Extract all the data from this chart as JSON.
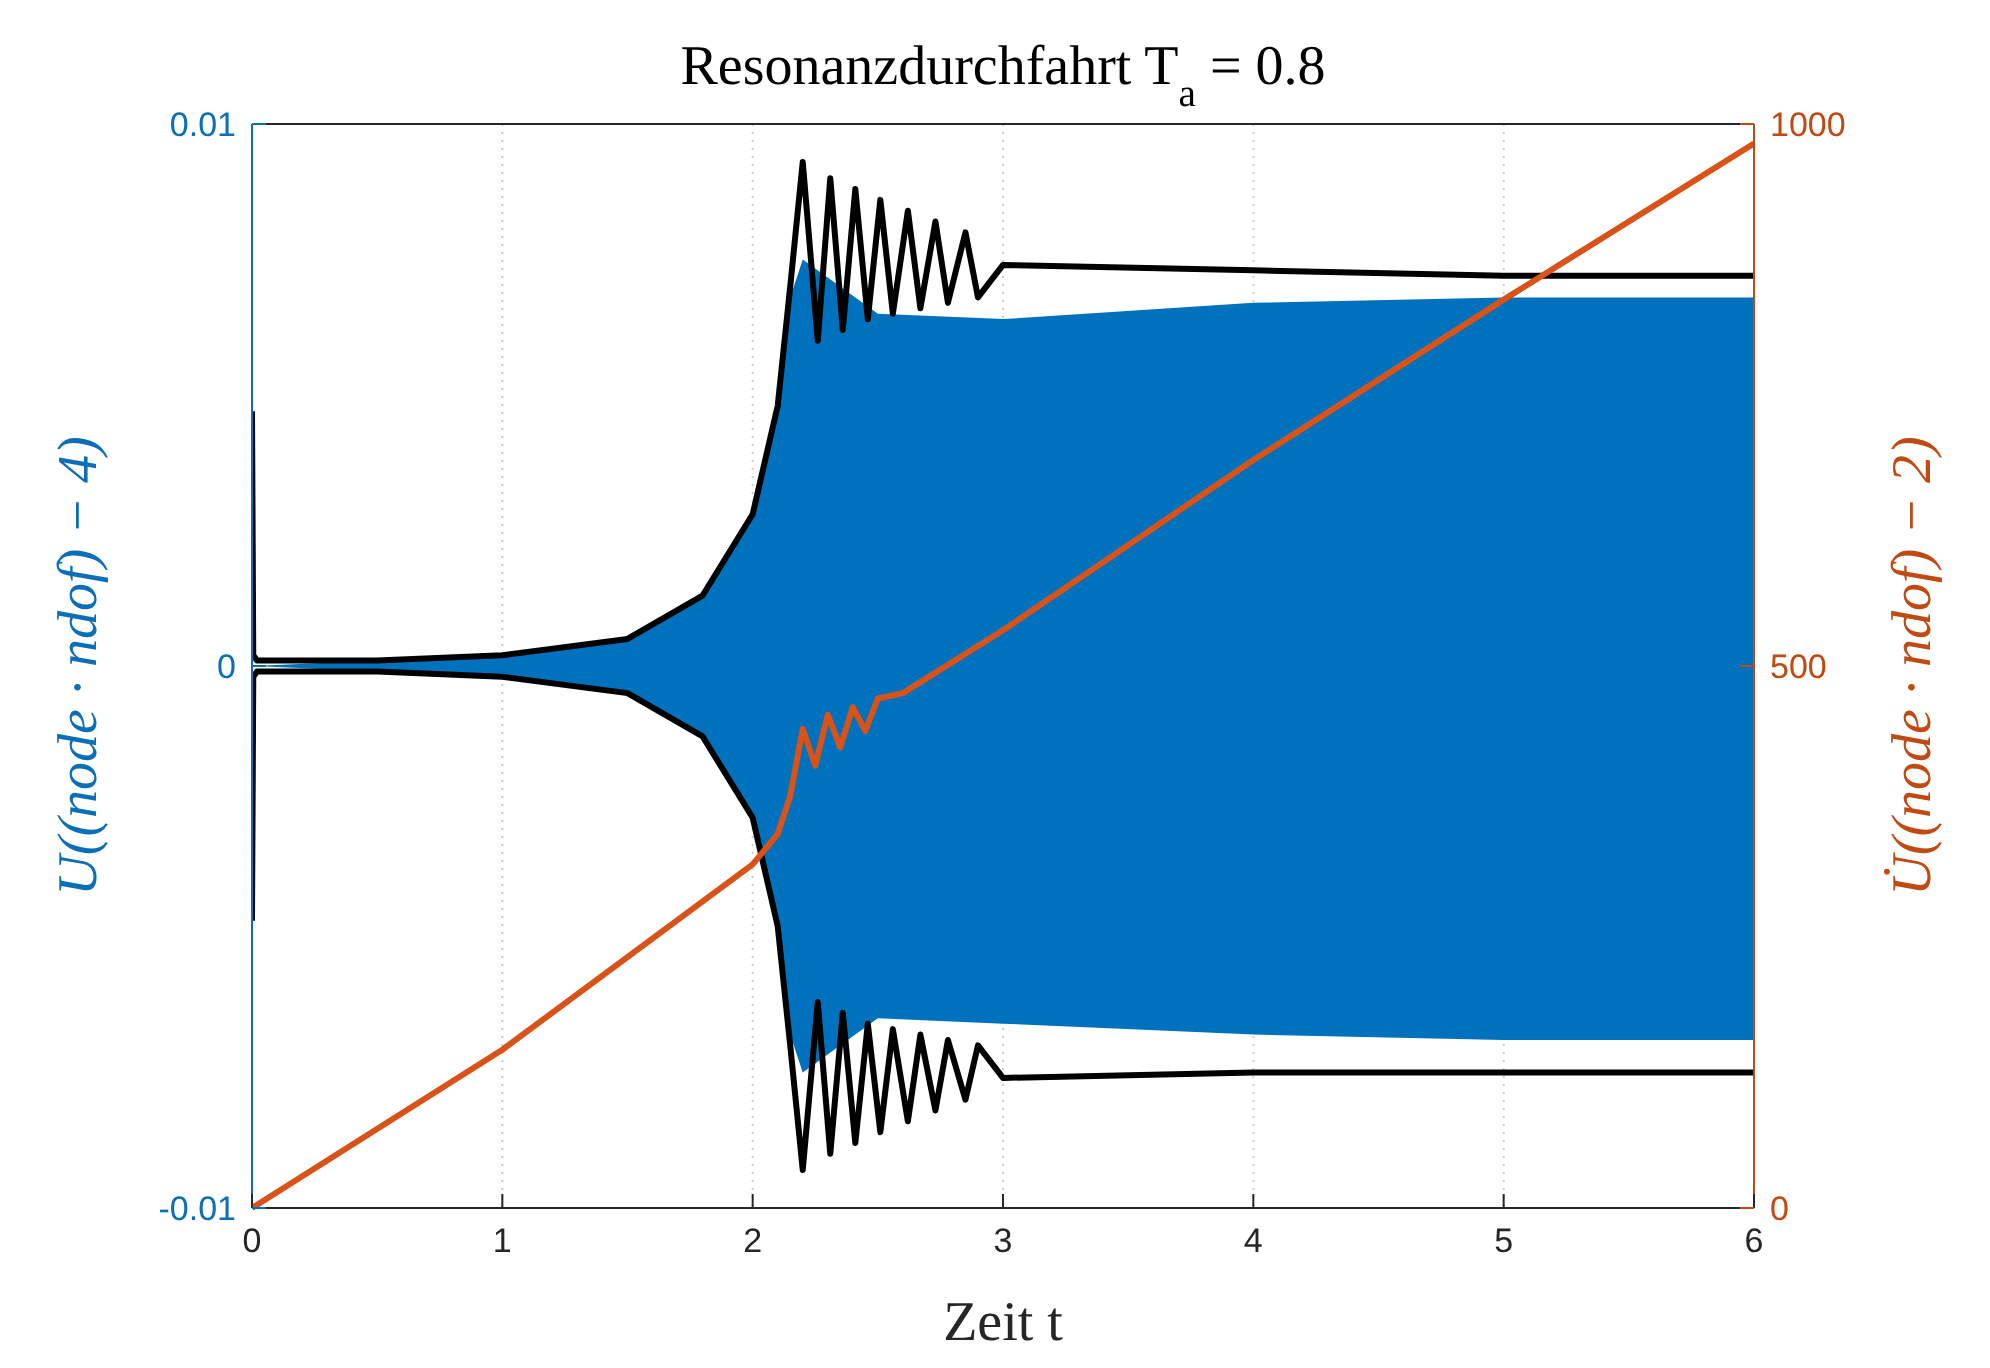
{
  "chart_data": {
    "type": "line",
    "title": "Resonanzdurchfahrt T$_{a}$ = 0.8",
    "xlabel": "Zeit t",
    "ylabel": "U((node · ndof) − 4)",
    "y2label": "U̇((node · ndof) − 2)",
    "xlim": [
      0,
      6
    ],
    "xticks": [
      0,
      1,
      2,
      3,
      4,
      5,
      6
    ],
    "ylim": [
      -0.01,
      0.01
    ],
    "yticks": [
      {
        "value": -0.01,
        "label": "-0.01"
      },
      0,
      0.01
    ],
    "y2lim": [
      0,
      1000
    ],
    "y2ticks": [
      0,
      500,
      1000
    ],
    "grid": true,
    "line_style": "solid",
    "marker": "none",
    "series": [
      {
        "type": "area",
        "color": "#0072bd",
        "x": [
          0,
          0.5,
          1,
          1.5,
          1.8,
          2,
          2.1,
          2.15,
          2.2,
          2.5,
          3,
          4,
          5,
          6
        ],
        "values": [
          0,
          0.0001,
          0.0002,
          0.0005,
          0.0013,
          0.0028,
          0.0048,
          0.0068,
          0.0075,
          0.0065,
          0.0064,
          0.0067,
          0.0068,
          0.0068
        ]
      },
      {
        "type": "area",
        "color": "#0072bd",
        "x": [
          0,
          0.5,
          1,
          1.5,
          1.8,
          2,
          2.1,
          2.15,
          2.2,
          2.5,
          3,
          4,
          5,
          6
        ],
        "values": [
          0,
          -0.0001,
          -0.0002,
          -0.0005,
          -0.0013,
          -0.0028,
          -0.0048,
          -0.0068,
          -0.0075,
          -0.0065,
          -0.0066,
          -0.0068,
          -0.0069,
          -0.0069
        ]
      },
      {
        "color": "#000000",
        "x": [
          0,
          0.005,
          0.02,
          0.5,
          1,
          1.5,
          1.8,
          2,
          2.1,
          2.15,
          2.2,
          2.26,
          2.31,
          2.36,
          2.41,
          2.46,
          2.51,
          2.56,
          2.62,
          2.67,
          2.73,
          2.78,
          2.85,
          2.9,
          3,
          4,
          5,
          6
        ],
        "values": [
          0.0047,
          0.0002,
          0.0001,
          0.0001,
          0.0002,
          0.0005,
          0.0013,
          0.0028,
          0.0048,
          0.007,
          0.0093,
          0.006,
          0.009,
          0.0062,
          0.0088,
          0.0064,
          0.0086,
          0.0065,
          0.0084,
          0.0066,
          0.0082,
          0.0067,
          0.008,
          0.0068,
          0.0074,
          0.0073,
          0.0072,
          0.0072
        ]
      },
      {
        "color": "#000000",
        "x": [
          0,
          0.005,
          0.02,
          0.5,
          1,
          1.5,
          1.8,
          2,
          2.1,
          2.15,
          2.2,
          2.26,
          2.31,
          2.36,
          2.41,
          2.46,
          2.51,
          2.56,
          2.62,
          2.67,
          2.73,
          2.78,
          2.85,
          2.9,
          3,
          4,
          5,
          6
        ],
        "values": [
          -0.0047,
          -0.0002,
          -0.0001,
          -0.0001,
          -0.0002,
          -0.0005,
          -0.0013,
          -0.0028,
          -0.0048,
          -0.007,
          -0.0093,
          -0.0062,
          -0.009,
          -0.0064,
          -0.0088,
          -0.0066,
          -0.0086,
          -0.0067,
          -0.0084,
          -0.0068,
          -0.0082,
          -0.0069,
          -0.008,
          -0.007,
          -0.0076,
          -0.0075,
          -0.0075,
          -0.0075
        ]
      },
      {
        "color": "#d95319",
        "axis": "y2",
        "x": [
          0,
          1,
          2,
          2.1,
          2.15,
          2.2,
          2.25,
          2.3,
          2.35,
          2.4,
          2.45,
          2.5,
          2.6,
          3,
          4,
          5,
          6
        ],
        "values": [
          0,
          146,
          317,
          345,
          380,
          442,
          408,
          455,
          425,
          462,
          440,
          470,
          475,
          533,
          690,
          838,
          982
        ]
      }
    ]
  }
}
